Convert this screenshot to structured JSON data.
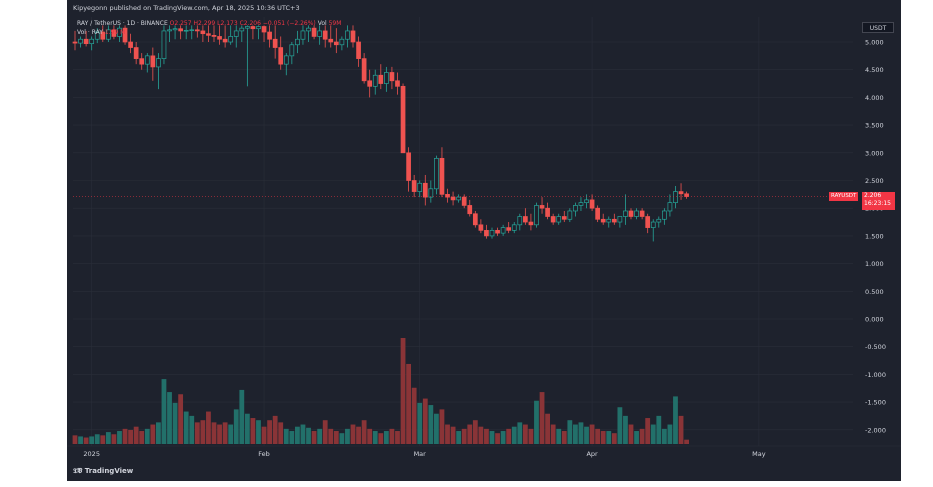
{
  "header": {
    "published": "Kipyegonn published on TradingView.com, Apr 18, 2025 10:36 UTC+3"
  },
  "legend": {
    "symbol": "RAY / TetherUS · 1D · BINANCE",
    "open": "O2.257",
    "high": "H2.299",
    "low": "L2.173",
    "close": "C2.206",
    "change": "−0.051 (−2.26%)",
    "vol_label": "Vol",
    "vol_value": "59M",
    "vol_line_label": "Vol · RAY",
    "vol_line_value": "1.99 M"
  },
  "price_axis": {
    "currency": "USDT",
    "labels": [
      "5.000",
      "4.500",
      "4.000",
      "3.500",
      "3.000",
      "2.500",
      "2.000",
      "1.500",
      "1.000",
      "0.500",
      "0.000",
      "-0.500",
      "-1.000",
      "-1.500",
      "-2.000"
    ]
  },
  "price_tag": {
    "symbol": "RAYUSDT",
    "price": "2.206",
    "countdown": "16:23:15"
  },
  "time_axis": {
    "labels": [
      "2025",
      "Feb",
      "Mar",
      "Apr",
      "May"
    ]
  },
  "footer": {
    "brand": "TradingView"
  },
  "colors": {
    "background": "#1e222d",
    "up": "#26a69a",
    "down": "#ef5350",
    "vol_up": "#22706a",
    "vol_down": "#8a3437",
    "text": "#d1d4dc"
  },
  "chart_data": {
    "type": "candlestick",
    "symbol": "RAY/USDT",
    "interval": "1D",
    "ylim": [
      -2.2,
      5.3
    ],
    "start_date": "2024-12-29",
    "end_date": "2025-04-18",
    "grid": true,
    "candles": [
      {
        "date": "2024-12-29",
        "o": 5.0,
        "h": 5.2,
        "l": 4.85,
        "c": 4.98,
        "v": 8
      },
      {
        "date": "2024-12-30",
        "o": 4.98,
        "h": 5.1,
        "l": 4.9,
        "c": 5.05,
        "v": 7
      },
      {
        "date": "2024-12-31",
        "o": 5.05,
        "h": 5.2,
        "l": 4.92,
        "c": 4.97,
        "v": 6
      },
      {
        "date": "2025-01-01",
        "o": 4.97,
        "h": 5.1,
        "l": 4.85,
        "c": 5.05,
        "v": 7
      },
      {
        "date": "2025-01-02",
        "o": 5.05,
        "h": 5.25,
        "l": 4.98,
        "c": 5.18,
        "v": 9
      },
      {
        "date": "2025-01-03",
        "o": 5.18,
        "h": 5.3,
        "l": 5.0,
        "c": 5.05,
        "v": 8
      },
      {
        "date": "2025-01-04",
        "o": 5.05,
        "h": 5.3,
        "l": 5.0,
        "c": 5.22,
        "v": 11
      },
      {
        "date": "2025-01-05",
        "o": 5.22,
        "h": 5.3,
        "l": 5.05,
        "c": 5.1,
        "v": 9
      },
      {
        "date": "2025-01-06",
        "o": 5.1,
        "h": 5.3,
        "l": 5.0,
        "c": 5.25,
        "v": 12
      },
      {
        "date": "2025-01-07",
        "o": 5.25,
        "h": 5.3,
        "l": 4.95,
        "c": 5.0,
        "v": 14
      },
      {
        "date": "2025-01-08",
        "o": 5.0,
        "h": 5.15,
        "l": 4.8,
        "c": 4.9,
        "v": 13
      },
      {
        "date": "2025-01-09",
        "o": 4.9,
        "h": 5.0,
        "l": 4.6,
        "c": 4.7,
        "v": 16
      },
      {
        "date": "2025-01-10",
        "o": 4.7,
        "h": 4.8,
        "l": 4.5,
        "c": 4.6,
        "v": 12
      },
      {
        "date": "2025-01-11",
        "o": 4.6,
        "h": 4.8,
        "l": 4.45,
        "c": 4.75,
        "v": 14
      },
      {
        "date": "2025-01-12",
        "o": 4.75,
        "h": 4.9,
        "l": 4.3,
        "c": 4.55,
        "v": 18
      },
      {
        "date": "2025-01-13",
        "o": 4.55,
        "h": 4.8,
        "l": 4.15,
        "c": 4.7,
        "v": 20
      },
      {
        "date": "2025-01-14",
        "o": 4.7,
        "h": 5.3,
        "l": 4.6,
        "c": 5.2,
        "v": 60
      },
      {
        "date": "2025-01-15",
        "o": 5.2,
        "h": 5.3,
        "l": 5.0,
        "c": 5.22,
        "v": 48
      },
      {
        "date": "2025-01-16",
        "o": 5.22,
        "h": 5.3,
        "l": 5.05,
        "c": 5.24,
        "v": 38
      },
      {
        "date": "2025-01-17",
        "o": 5.24,
        "h": 5.3,
        "l": 5.05,
        "c": 5.2,
        "v": 46
      },
      {
        "date": "2025-01-18",
        "o": 5.2,
        "h": 5.3,
        "l": 5.05,
        "c": 5.21,
        "v": 30
      },
      {
        "date": "2025-01-19",
        "o": 5.21,
        "h": 5.3,
        "l": 5.05,
        "c": 5.22,
        "v": 26
      },
      {
        "date": "2025-01-20",
        "o": 5.22,
        "h": 5.3,
        "l": 5.08,
        "c": 5.2,
        "v": 20
      },
      {
        "date": "2025-01-21",
        "o": 5.2,
        "h": 5.3,
        "l": 5.0,
        "c": 5.15,
        "v": 22
      },
      {
        "date": "2025-01-22",
        "o": 5.15,
        "h": 5.3,
        "l": 5.0,
        "c": 5.12,
        "v": 30
      },
      {
        "date": "2025-01-23",
        "o": 5.12,
        "h": 5.3,
        "l": 5.0,
        "c": 5.1,
        "v": 20
      },
      {
        "date": "2025-01-24",
        "o": 5.1,
        "h": 5.3,
        "l": 4.95,
        "c": 5.05,
        "v": 18
      },
      {
        "date": "2025-01-25",
        "o": 5.05,
        "h": 5.3,
        "l": 4.9,
        "c": 5.0,
        "v": 20
      },
      {
        "date": "2025-01-26",
        "o": 5.0,
        "h": 5.3,
        "l": 4.95,
        "c": 5.1,
        "v": 18
      },
      {
        "date": "2025-01-27",
        "o": 5.1,
        "h": 5.3,
        "l": 4.9,
        "c": 5.2,
        "v": 32
      },
      {
        "date": "2025-01-28",
        "o": 5.2,
        "h": 5.3,
        "l": 5.0,
        "c": 5.25,
        "v": 50
      },
      {
        "date": "2025-01-29",
        "o": 5.25,
        "h": 5.3,
        "l": 4.2,
        "c": 5.28,
        "v": 28
      },
      {
        "date": "2025-01-30",
        "o": 5.28,
        "h": 5.3,
        "l": 5.05,
        "c": 5.24,
        "v": 24
      },
      {
        "date": "2025-01-31",
        "o": 5.24,
        "h": 5.3,
        "l": 5.05,
        "c": 5.28,
        "v": 22
      },
      {
        "date": "2025-02-01",
        "o": 5.28,
        "h": 5.3,
        "l": 5.0,
        "c": 5.18,
        "v": 16
      },
      {
        "date": "2025-02-02",
        "o": 5.18,
        "h": 5.3,
        "l": 4.9,
        "c": 5.05,
        "v": 22
      },
      {
        "date": "2025-02-03",
        "o": 5.05,
        "h": 5.3,
        "l": 4.7,
        "c": 4.9,
        "v": 26
      },
      {
        "date": "2025-02-04",
        "o": 4.9,
        "h": 5.1,
        "l": 4.5,
        "c": 4.6,
        "v": 20
      },
      {
        "date": "2025-02-05",
        "o": 4.6,
        "h": 4.8,
        "l": 4.4,
        "c": 4.75,
        "v": 14
      },
      {
        "date": "2025-02-06",
        "o": 4.75,
        "h": 5.0,
        "l": 4.6,
        "c": 4.95,
        "v": 12
      },
      {
        "date": "2025-02-07",
        "o": 4.95,
        "h": 5.2,
        "l": 4.8,
        "c": 5.05,
        "v": 16
      },
      {
        "date": "2025-02-08",
        "o": 5.05,
        "h": 5.3,
        "l": 4.95,
        "c": 5.2,
        "v": 18
      },
      {
        "date": "2025-02-09",
        "o": 5.2,
        "h": 5.3,
        "l": 5.0,
        "c": 5.25,
        "v": 15
      },
      {
        "date": "2025-02-10",
        "o": 5.25,
        "h": 5.3,
        "l": 5.05,
        "c": 5.1,
        "v": 12
      },
      {
        "date": "2025-02-11",
        "o": 5.1,
        "h": 5.3,
        "l": 4.95,
        "c": 5.2,
        "v": 14
      },
      {
        "date": "2025-02-12",
        "o": 5.2,
        "h": 5.3,
        "l": 4.9,
        "c": 5.05,
        "v": 22
      },
      {
        "date": "2025-02-13",
        "o": 5.05,
        "h": 5.3,
        "l": 4.9,
        "c": 5.0,
        "v": 14
      },
      {
        "date": "2025-02-14",
        "o": 5.0,
        "h": 5.25,
        "l": 4.8,
        "c": 4.95,
        "v": 12
      },
      {
        "date": "2025-02-15",
        "o": 4.95,
        "h": 5.1,
        "l": 4.85,
        "c": 5.05,
        "v": 10
      },
      {
        "date": "2025-02-16",
        "o": 5.05,
        "h": 5.3,
        "l": 4.9,
        "c": 5.2,
        "v": 14
      },
      {
        "date": "2025-02-17",
        "o": 5.2,
        "h": 5.3,
        "l": 4.9,
        "c": 5.0,
        "v": 18
      },
      {
        "date": "2025-02-18",
        "o": 5.0,
        "h": 5.1,
        "l": 4.55,
        "c": 4.7,
        "v": 16
      },
      {
        "date": "2025-02-19",
        "o": 4.7,
        "h": 4.8,
        "l": 4.25,
        "c": 4.3,
        "v": 22
      },
      {
        "date": "2025-02-20",
        "o": 4.3,
        "h": 4.5,
        "l": 4.0,
        "c": 4.2,
        "v": 14
      },
      {
        "date": "2025-02-21",
        "o": 4.2,
        "h": 4.5,
        "l": 4.05,
        "c": 4.4,
        "v": 12
      },
      {
        "date": "2025-02-22",
        "o": 4.4,
        "h": 4.6,
        "l": 4.15,
        "c": 4.25,
        "v": 10
      },
      {
        "date": "2025-02-23",
        "o": 4.25,
        "h": 4.55,
        "l": 4.1,
        "c": 4.45,
        "v": 12
      },
      {
        "date": "2025-02-24",
        "o": 4.45,
        "h": 4.55,
        "l": 4.15,
        "c": 4.3,
        "v": 14
      },
      {
        "date": "2025-02-25",
        "o": 4.3,
        "h": 4.45,
        "l": 4.05,
        "c": 4.2,
        "v": 12
      },
      {
        "date": "2025-02-26",
        "o": 4.2,
        "h": 4.25,
        "l": 3.0,
        "c": 3.0,
        "v": 98
      },
      {
        "date": "2025-02-27",
        "o": 3.0,
        "h": 3.1,
        "l": 2.3,
        "c": 2.5,
        "v": 74
      },
      {
        "date": "2025-02-28",
        "o": 2.5,
        "h": 2.6,
        "l": 2.2,
        "c": 2.3,
        "v": 52
      },
      {
        "date": "2025-03-01",
        "o": 2.3,
        "h": 2.5,
        "l": 2.2,
        "c": 2.45,
        "v": 38
      },
      {
        "date": "2025-03-02",
        "o": 2.45,
        "h": 2.6,
        "l": 2.05,
        "c": 2.2,
        "v": 42
      },
      {
        "date": "2025-03-03",
        "o": 2.2,
        "h": 2.5,
        "l": 2.1,
        "c": 2.35,
        "v": 36
      },
      {
        "date": "2025-03-04",
        "o": 2.35,
        "h": 2.95,
        "l": 2.25,
        "c": 2.9,
        "v": 28
      },
      {
        "date": "2025-03-05",
        "o": 2.9,
        "h": 3.1,
        "l": 2.2,
        "c": 2.25,
        "v": 32
      },
      {
        "date": "2025-03-06",
        "o": 2.25,
        "h": 2.35,
        "l": 2.1,
        "c": 2.2,
        "v": 18
      },
      {
        "date": "2025-03-07",
        "o": 2.2,
        "h": 2.3,
        "l": 2.05,
        "c": 2.15,
        "v": 16
      },
      {
        "date": "2025-03-08",
        "o": 2.15,
        "h": 2.25,
        "l": 2.1,
        "c": 2.2,
        "v": 12
      },
      {
        "date": "2025-03-09",
        "o": 2.2,
        "h": 2.25,
        "l": 2.0,
        "c": 2.05,
        "v": 14
      },
      {
        "date": "2025-03-10",
        "o": 2.05,
        "h": 2.15,
        "l": 1.85,
        "c": 1.9,
        "v": 18
      },
      {
        "date": "2025-03-11",
        "o": 1.9,
        "h": 1.95,
        "l": 1.65,
        "c": 1.7,
        "v": 22
      },
      {
        "date": "2025-03-12",
        "o": 1.7,
        "h": 1.8,
        "l": 1.55,
        "c": 1.6,
        "v": 16
      },
      {
        "date": "2025-03-13",
        "o": 1.6,
        "h": 1.7,
        "l": 1.45,
        "c": 1.5,
        "v": 14
      },
      {
        "date": "2025-03-14",
        "o": 1.5,
        "h": 1.65,
        "l": 1.45,
        "c": 1.6,
        "v": 12
      },
      {
        "date": "2025-03-15",
        "o": 1.6,
        "h": 1.65,
        "l": 1.5,
        "c": 1.55,
        "v": 10
      },
      {
        "date": "2025-03-16",
        "o": 1.55,
        "h": 1.7,
        "l": 1.5,
        "c": 1.65,
        "v": 12
      },
      {
        "date": "2025-03-17",
        "o": 1.65,
        "h": 1.75,
        "l": 1.55,
        "c": 1.6,
        "v": 14
      },
      {
        "date": "2025-03-18",
        "o": 1.6,
        "h": 1.75,
        "l": 1.55,
        "c": 1.7,
        "v": 16
      },
      {
        "date": "2025-03-19",
        "o": 1.7,
        "h": 1.9,
        "l": 1.6,
        "c": 1.85,
        "v": 20
      },
      {
        "date": "2025-03-20",
        "o": 1.85,
        "h": 2.0,
        "l": 1.7,
        "c": 1.75,
        "v": 18
      },
      {
        "date": "2025-03-21",
        "o": 1.75,
        "h": 1.9,
        "l": 1.6,
        "c": 1.7,
        "v": 14
      },
      {
        "date": "2025-03-22",
        "o": 1.7,
        "h": 2.1,
        "l": 1.65,
        "c": 2.05,
        "v": 40
      },
      {
        "date": "2025-03-23",
        "o": 2.05,
        "h": 2.2,
        "l": 1.9,
        "c": 2.0,
        "v": 48
      },
      {
        "date": "2025-03-24",
        "o": 2.0,
        "h": 2.1,
        "l": 1.8,
        "c": 1.85,
        "v": 28
      },
      {
        "date": "2025-03-25",
        "o": 1.85,
        "h": 1.9,
        "l": 1.7,
        "c": 1.75,
        "v": 18
      },
      {
        "date": "2025-03-26",
        "o": 1.75,
        "h": 1.9,
        "l": 1.7,
        "c": 1.85,
        "v": 14
      },
      {
        "date": "2025-03-27",
        "o": 1.85,
        "h": 1.95,
        "l": 1.75,
        "c": 1.8,
        "v": 12
      },
      {
        "date": "2025-03-28",
        "o": 1.8,
        "h": 2.0,
        "l": 1.75,
        "c": 1.95,
        "v": 22
      },
      {
        "date": "2025-03-29",
        "o": 1.95,
        "h": 2.1,
        "l": 1.85,
        "c": 2.05,
        "v": 18
      },
      {
        "date": "2025-03-30",
        "o": 2.05,
        "h": 2.2,
        "l": 1.95,
        "c": 2.1,
        "v": 20
      },
      {
        "date": "2025-03-31",
        "o": 2.1,
        "h": 2.25,
        "l": 2.0,
        "c": 2.15,
        "v": 16
      },
      {
        "date": "2025-04-01",
        "o": 2.15,
        "h": 2.25,
        "l": 1.95,
        "c": 2.0,
        "v": 18
      },
      {
        "date": "2025-04-02",
        "o": 2.0,
        "h": 2.05,
        "l": 1.75,
        "c": 1.8,
        "v": 14
      },
      {
        "date": "2025-04-03",
        "o": 1.8,
        "h": 1.9,
        "l": 1.7,
        "c": 1.75,
        "v": 12
      },
      {
        "date": "2025-04-04",
        "o": 1.75,
        "h": 1.85,
        "l": 1.65,
        "c": 1.8,
        "v": 12
      },
      {
        "date": "2025-04-05",
        "o": 1.8,
        "h": 1.9,
        "l": 1.7,
        "c": 1.75,
        "v": 10
      },
      {
        "date": "2025-04-06",
        "o": 1.75,
        "h": 1.85,
        "l": 1.65,
        "c": 1.85,
        "v": 34
      },
      {
        "date": "2025-04-07",
        "o": 1.85,
        "h": 2.25,
        "l": 1.7,
        "c": 1.95,
        "v": 26
      },
      {
        "date": "2025-04-08",
        "o": 1.95,
        "h": 2.0,
        "l": 1.8,
        "c": 1.85,
        "v": 18
      },
      {
        "date": "2025-04-09",
        "o": 1.85,
        "h": 2.0,
        "l": 1.8,
        "c": 1.95,
        "v": 12
      },
      {
        "date": "2025-04-10",
        "o": 1.95,
        "h": 2.0,
        "l": 1.8,
        "c": 1.85,
        "v": 14
      },
      {
        "date": "2025-04-11",
        "o": 1.85,
        "h": 1.9,
        "l": 1.55,
        "c": 1.65,
        "v": 24
      },
      {
        "date": "2025-04-12",
        "o": 1.65,
        "h": 1.8,
        "l": 1.4,
        "c": 1.75,
        "v": 18
      },
      {
        "date": "2025-04-13",
        "o": 1.75,
        "h": 1.85,
        "l": 1.65,
        "c": 1.8,
        "v": 26
      },
      {
        "date": "2025-04-14",
        "o": 1.8,
        "h": 2.0,
        "l": 1.7,
        "c": 1.95,
        "v": 14
      },
      {
        "date": "2025-04-15",
        "o": 1.95,
        "h": 2.25,
        "l": 1.85,
        "c": 2.1,
        "v": 18
      },
      {
        "date": "2025-04-16",
        "o": 2.1,
        "h": 2.4,
        "l": 2.0,
        "c": 2.3,
        "v": 44
      },
      {
        "date": "2025-04-17",
        "o": 2.3,
        "h": 2.45,
        "l": 2.15,
        "c": 2.26,
        "v": 26
      },
      {
        "date": "2025-04-18",
        "o": 2.26,
        "h": 2.3,
        "l": 2.17,
        "c": 2.21,
        "v": 4
      }
    ]
  }
}
